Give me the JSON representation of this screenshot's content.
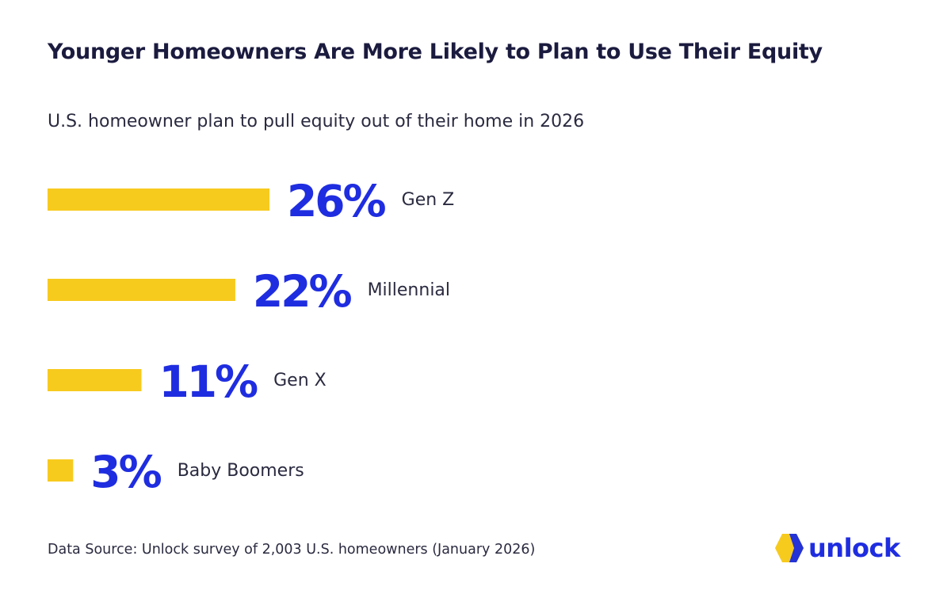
{
  "title": "Younger Homeowners Are More Likely to Plan to Use Their Equity",
  "subtitle": "U.S. homeowner plan to pull equity out of their home in 2026",
  "footer": "Data Source: Unlock survey of 2,003 U.S. homeowners (January 2026)",
  "logo": {
    "text": "unlock",
    "icon": "unlock-logo-icon"
  },
  "colors": {
    "bar": "#F7CA1E",
    "value": "#1F2DE0",
    "title": "#1B1B3F",
    "text": "#2A2A40"
  },
  "chart_data": {
    "type": "bar",
    "orientation": "horizontal",
    "categories": [
      "Gen Z",
      "Millennial",
      "Gen X",
      "Baby Boomers"
    ],
    "values": [
      26,
      22,
      11,
      3
    ],
    "value_labels": [
      "26%",
      "22%",
      "11%",
      "3%"
    ],
    "unit": "%",
    "title": "Younger Homeowners Are More Likely to Plan to Use Their Equity",
    "subtitle": "U.S. homeowner plan to pull equity out of their home in 2026",
    "xlabel": "",
    "ylabel": "",
    "grid": false,
    "legend": "none"
  }
}
